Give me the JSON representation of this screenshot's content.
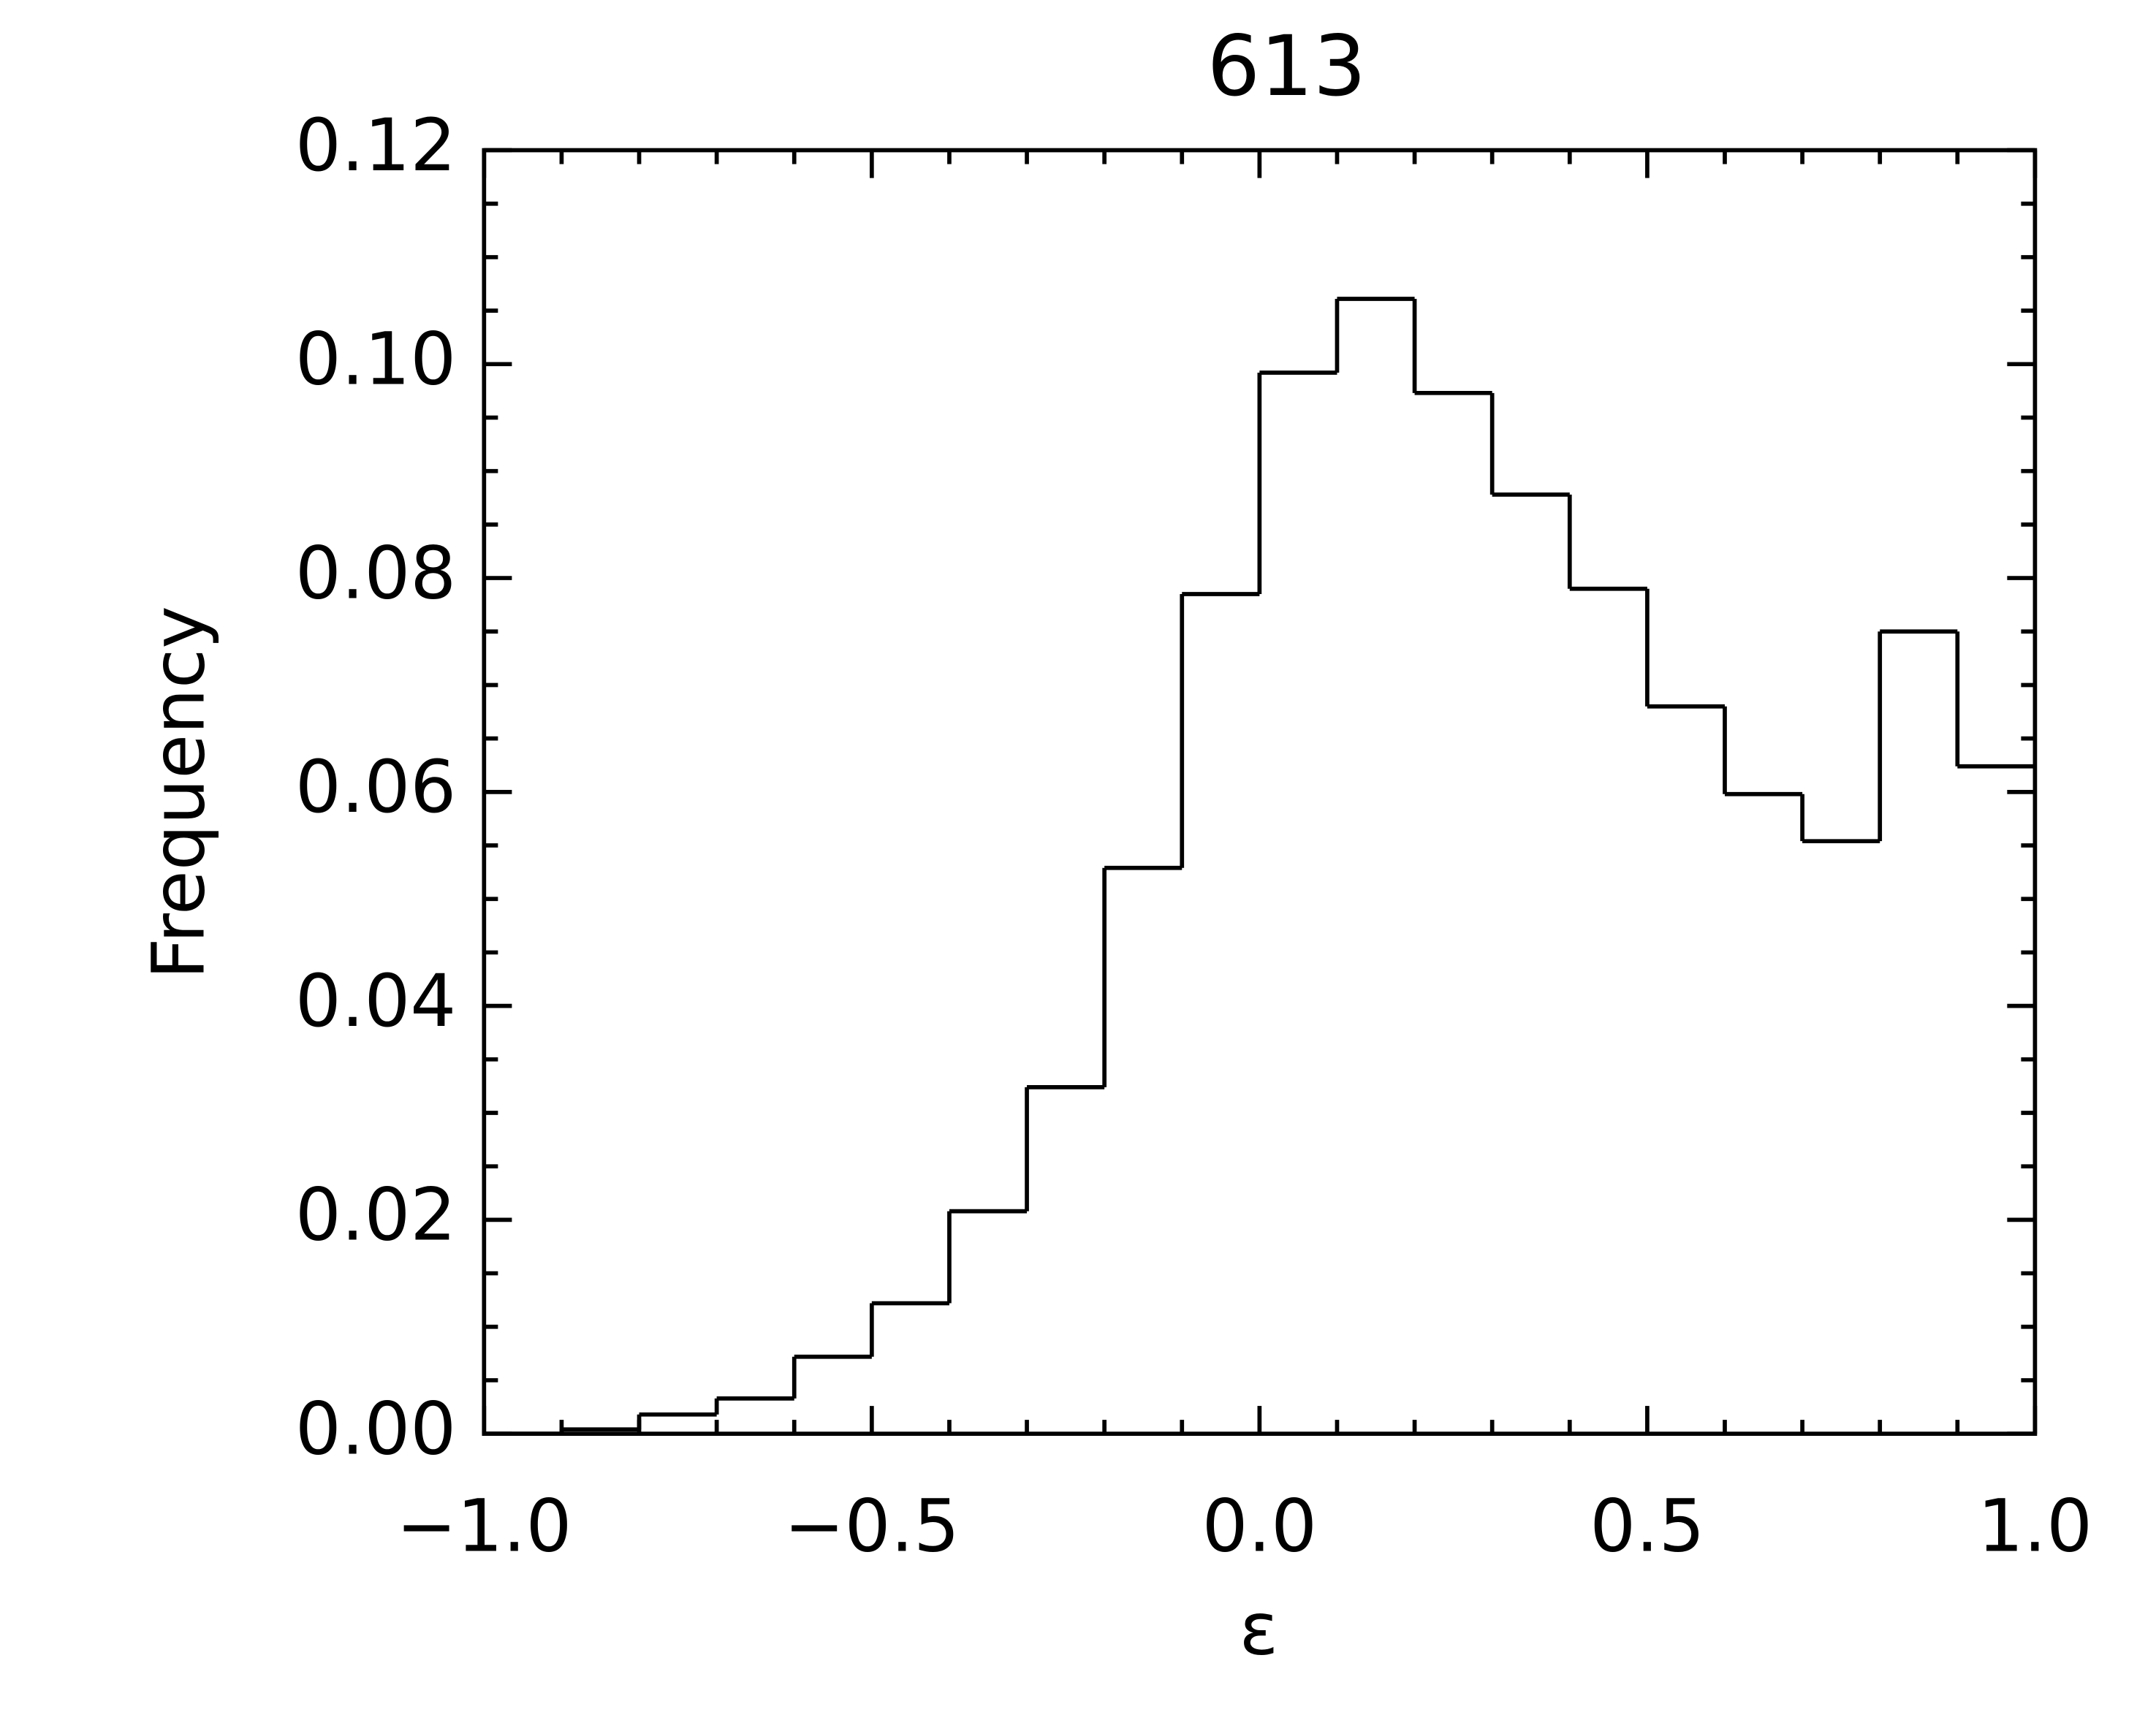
{
  "chart_data": {
    "type": "histogram",
    "title": "613",
    "xlabel": "ε",
    "ylabel": "Frequency",
    "bins": [
      -1.0,
      -0.9,
      -0.8,
      -0.7,
      -0.6,
      -0.5,
      -0.4,
      -0.3,
      -0.2,
      -0.1,
      0.0,
      0.1,
      0.2,
      0.3,
      0.4,
      0.5,
      0.6,
      0.7,
      0.8,
      0.9,
      1.0
    ],
    "values": [
      0.0,
      0.0004,
      0.0018,
      0.0033,
      0.0072,
      0.0122,
      0.0208,
      0.0324,
      0.0529,
      0.0785,
      0.0992,
      0.1061,
      0.0973,
      0.0878,
      0.079,
      0.068,
      0.0598,
      0.0554,
      0.075,
      0.0624
    ],
    "color": "#000000",
    "xlim": [
      -1.0,
      1.0
    ],
    "xticks": [
      {
        "value": -1.0,
        "label": "−1.0"
      },
      {
        "value": -0.5,
        "label": "−0.5"
      },
      {
        "value": 0.0,
        "label": "0.0"
      },
      0.5,
      {
        "value": 1.0,
        "label": "1.0"
      }
    ],
    "ylim": [
      0.0,
      0.12
    ],
    "yticks": [
      {
        "value": 0.0,
        "label": "0.00"
      },
      {
        "value": 0.02,
        "label": "0.02"
      },
      {
        "value": 0.04,
        "label": "0.04"
      },
      {
        "value": 0.06,
        "label": "0.06"
      },
      {
        "value": 0.08,
        "label": "0.08"
      },
      {
        "value": 0.1,
        "label": "0.10"
      },
      {
        "value": 0.12,
        "label": "0.12"
      }
    ],
    "x_minor_intervals": 5,
    "y_minor_intervals": 4,
    "grid": false
  }
}
